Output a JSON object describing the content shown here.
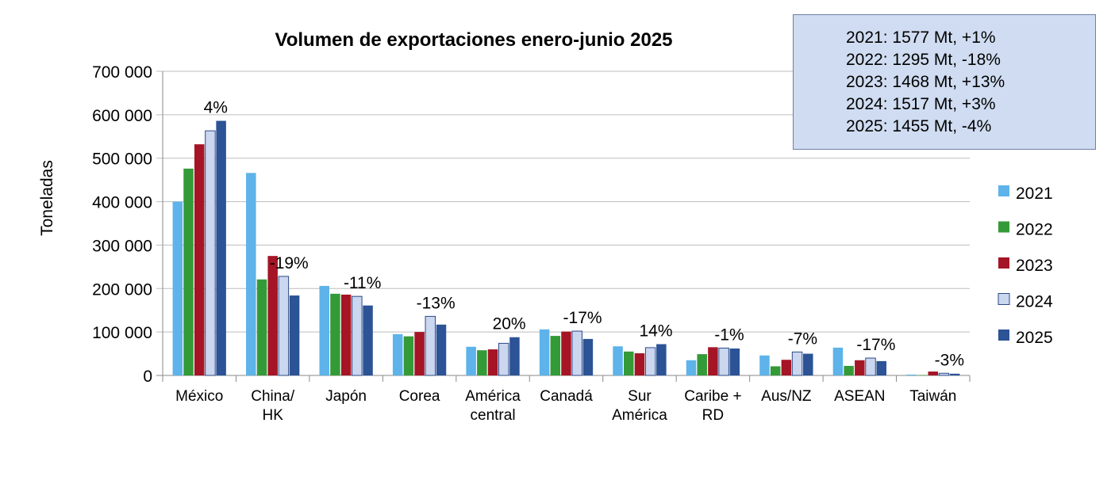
{
  "chart_data": {
    "type": "bar",
    "title": "Volumen de exportaciones enero-junio 2025",
    "xlabel": "",
    "ylabel": "Toneladas",
    "ylim": [
      0,
      700000
    ],
    "yticks": [
      "0",
      "100 000",
      "200 000",
      "300 000",
      "400 000",
      "500 000",
      "600 000",
      "700 000"
    ],
    "grid": true,
    "legend_position": "right",
    "categories": [
      [
        "México"
      ],
      [
        "China/",
        "HK"
      ],
      [
        "Japón"
      ],
      [
        "Corea"
      ],
      [
        "América",
        "central"
      ],
      [
        "Canadá"
      ],
      [
        "Sur",
        "América"
      ],
      [
        "Caribe +",
        "RD"
      ],
      [
        "Aus/NZ"
      ],
      [
        "ASEAN"
      ],
      [
        "Taiwán"
      ]
    ],
    "series": [
      {
        "name": "2021",
        "color": "#5db3ea",
        "values": [
          400000,
          466000,
          206000,
          95000,
          66000,
          106000,
          67000,
          35000,
          46000,
          64000,
          2000
        ]
      },
      {
        "name": "2022",
        "color": "#349a38",
        "values": [
          476000,
          221000,
          188000,
          90000,
          58000,
          91000,
          55000,
          49000,
          21000,
          22000,
          1000
        ]
      },
      {
        "name": "2023",
        "color": "#a51525",
        "values": [
          532000,
          275000,
          186000,
          100000,
          60000,
          101000,
          51000,
          65000,
          36000,
          35000,
          9000
        ]
      },
      {
        "name": "2024",
        "color": "#cbd6ef",
        "values": [
          563000,
          228000,
          182000,
          136000,
          74000,
          102000,
          64000,
          63000,
          54000,
          40000,
          5000
        ]
      },
      {
        "name": "2025",
        "color": "#2b5395",
        "values": [
          586000,
          184000,
          161000,
          117000,
          88000,
          84000,
          72000,
          62000,
          50000,
          33000,
          4000
        ]
      }
    ],
    "annotations": [
      "4%",
      "-19%",
      "-11%",
      "-13%",
      "20%",
      "-17%",
      "14%",
      "-1%",
      "-7%",
      "-17%",
      "-3%"
    ],
    "summary_box": [
      "2021: 1577 Mt, +1%",
      "2022: 1295 Mt, -18%",
      "2023: 1468 Mt, +13%",
      "2024: 1517 Mt, +3%",
      "2025: 1455 Mt, -4%"
    ]
  }
}
